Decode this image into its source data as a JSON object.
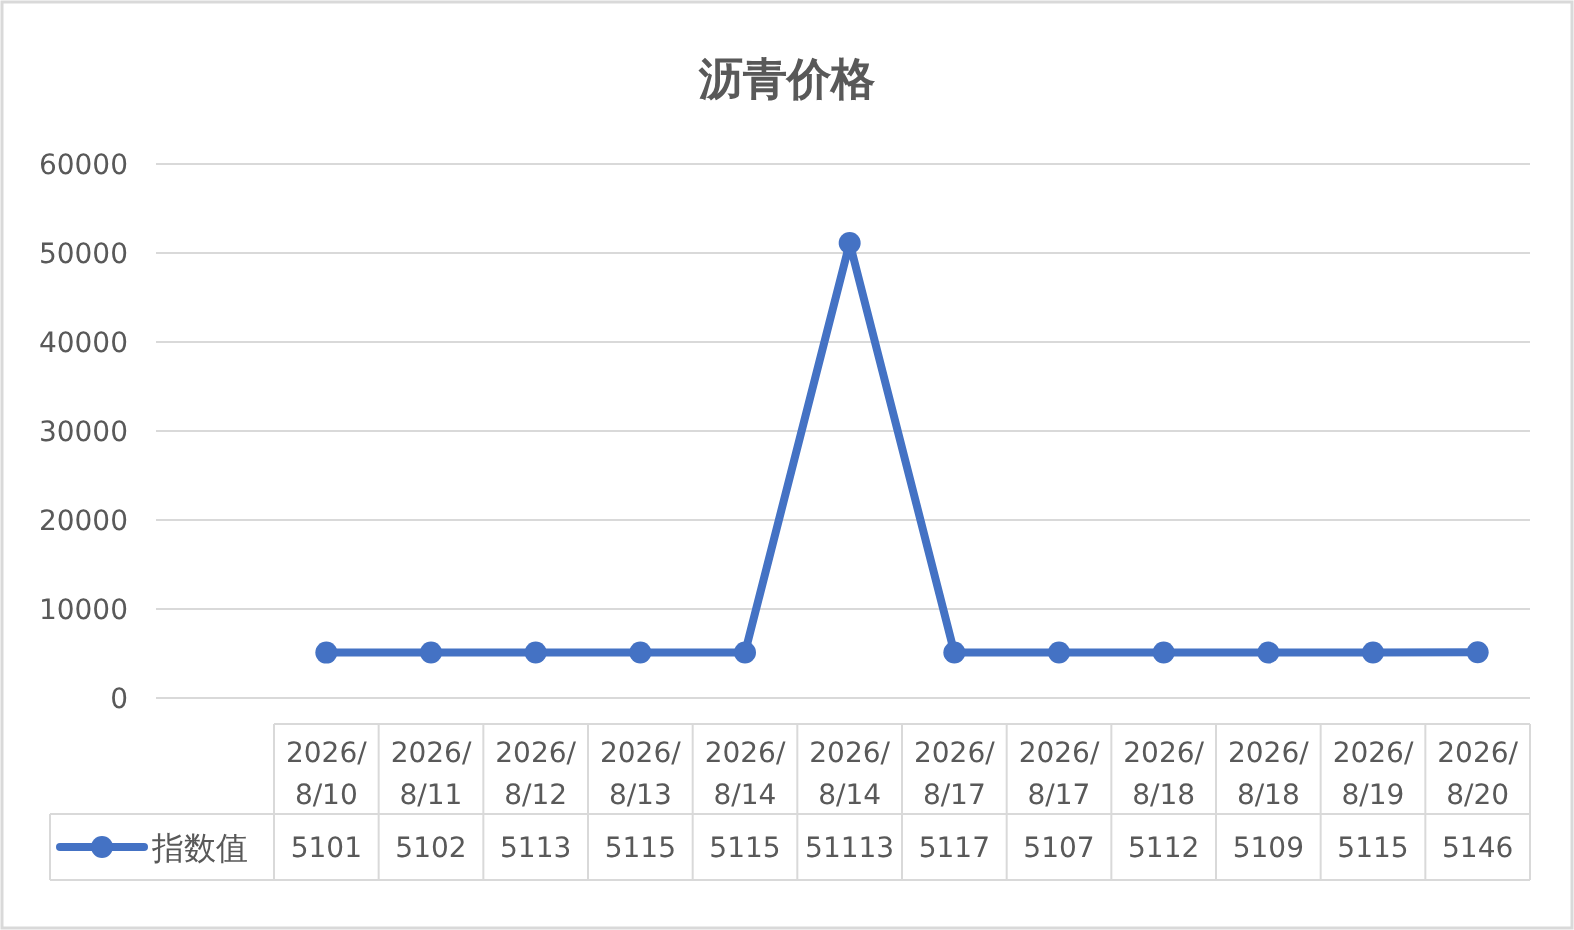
{
  "chart_data": {
    "type": "line",
    "title": "沥青价格",
    "categories": [
      "2026/8/10",
      "2026/8/11",
      "2026/8/12",
      "2026/8/13",
      "2026/8/14",
      "2026/8/14",
      "2026/8/17",
      "2026/8/17",
      "2026/8/18",
      "2026/8/18",
      "2026/8/19",
      "2026/8/20"
    ],
    "series": [
      {
        "name": "指数值",
        "color": "#4472c4",
        "values": [
          5101,
          5102,
          5113,
          5115,
          5115,
          51113,
          5117,
          5107,
          5112,
          5109,
          5115,
          5146
        ]
      }
    ],
    "ylim": [
      0,
      60000
    ],
    "yticks": [
      0,
      10000,
      20000,
      30000,
      40000,
      50000,
      60000
    ],
    "grid": "y",
    "legend": "bottom",
    "marker": "circle",
    "line_style": "solid",
    "data_labels": true
  }
}
